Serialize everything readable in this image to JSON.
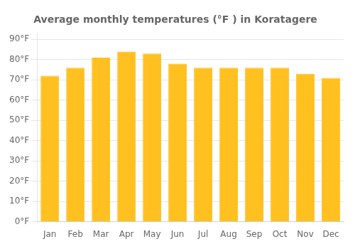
{
  "chart_data": {
    "type": "bar",
    "title": "Average monthly temperatures (°F ) in Koratagere",
    "categories": [
      "Jan",
      "Feb",
      "Mar",
      "Apr",
      "May",
      "Jun",
      "Jul",
      "Aug",
      "Sep",
      "Oct",
      "Nov",
      "Dec"
    ],
    "values": [
      72,
      76,
      81,
      84,
      83,
      78,
      76,
      76,
      76,
      76,
      73,
      71
    ],
    "color": "#FFC020",
    "ylim": [
      0,
      93
    ],
    "yticks": [
      {
        "value": 0,
        "label": "0°F"
      },
      {
        "value": 10,
        "label": "10°F"
      },
      {
        "value": 20,
        "label": "20°F"
      },
      {
        "value": 30,
        "label": "30°F"
      },
      {
        "value": 40,
        "label": "40°F"
      },
      {
        "value": 50,
        "label": "50°F"
      },
      {
        "value": 60,
        "label": "60°F"
      },
      {
        "value": 70,
        "label": "70°F"
      },
      {
        "value": 80,
        "label": "80°F"
      },
      {
        "value": 90,
        "label": "90°F"
      }
    ],
    "grid": true
  }
}
